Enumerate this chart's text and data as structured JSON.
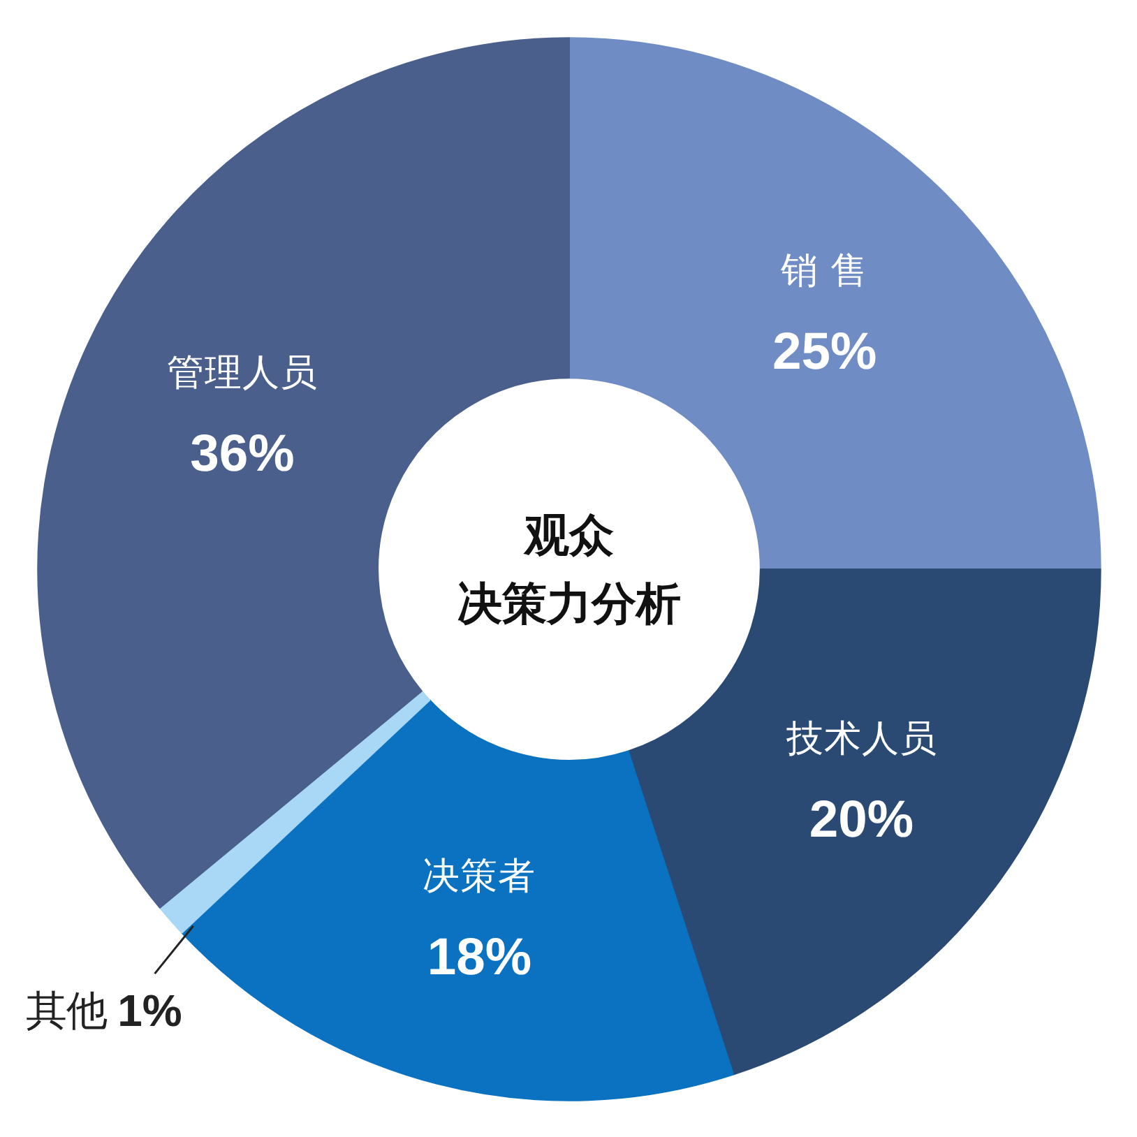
{
  "chart_data": {
    "type": "donut",
    "title": "观众",
    "subtitle": "决策力分析",
    "categories": [
      "销 售",
      "技术人员",
      "决策者",
      "其他",
      "管理人员"
    ],
    "values": [
      25,
      20,
      18,
      1,
      36
    ],
    "value_labels": [
      "25%",
      "20%",
      "18%",
      "1%",
      "36%"
    ],
    "colors": [
      "#6f8cc4",
      "#2a4a74",
      "#0a72c0",
      "#a8d8f5",
      "#4a5f8c"
    ]
  }
}
